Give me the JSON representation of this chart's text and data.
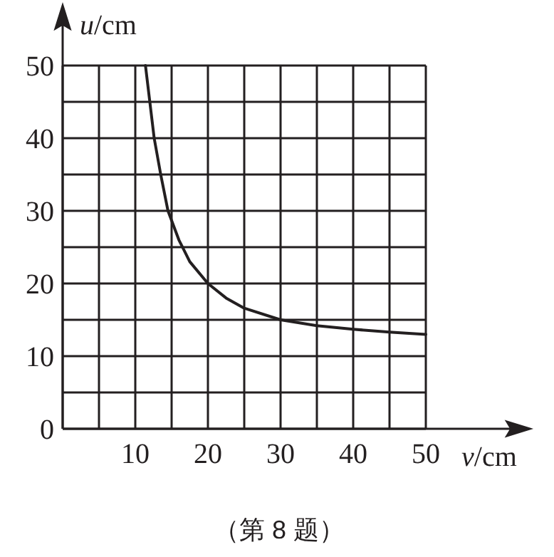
{
  "chart_data": {
    "type": "line",
    "xlabel": "v/cm",
    "ylabel": "u/cm",
    "annotations": [
      "（第 8 题）"
    ],
    "x": [
      11.4,
      12,
      12.6,
      13.5,
      14.5,
      16,
      17.5,
      20,
      22.5,
      25,
      30,
      35,
      40,
      45,
      50
    ],
    "series": [
      {
        "color": "#231f20",
        "values": [
          50,
          45,
          40,
          35,
          30,
          26,
          23,
          20,
          18,
          16.6,
          15,
          14.2,
          13.7,
          13.3,
          13
        ]
      }
    ],
    "xlim": [
      0,
      50
    ],
    "ylim": [
      0,
      50
    ],
    "xticks": [
      {
        "value": 0,
        "label": null
      },
      {
        "value": 5,
        "label": null
      },
      10,
      {
        "value": 15,
        "label": null
      },
      20,
      {
        "value": 25,
        "label": null
      },
      30,
      {
        "value": 35,
        "label": null
      },
      40,
      {
        "value": 45,
        "label": null
      },
      50
    ],
    "yticks": [
      0,
      {
        "value": 5,
        "label": null
      },
      10,
      {
        "value": 15,
        "label": null
      },
      20,
      {
        "value": 25,
        "label": null
      },
      30,
      {
        "value": 35,
        "label": null
      },
      40,
      {
        "value": 45,
        "label": null
      },
      50
    ],
    "grid": true
  }
}
